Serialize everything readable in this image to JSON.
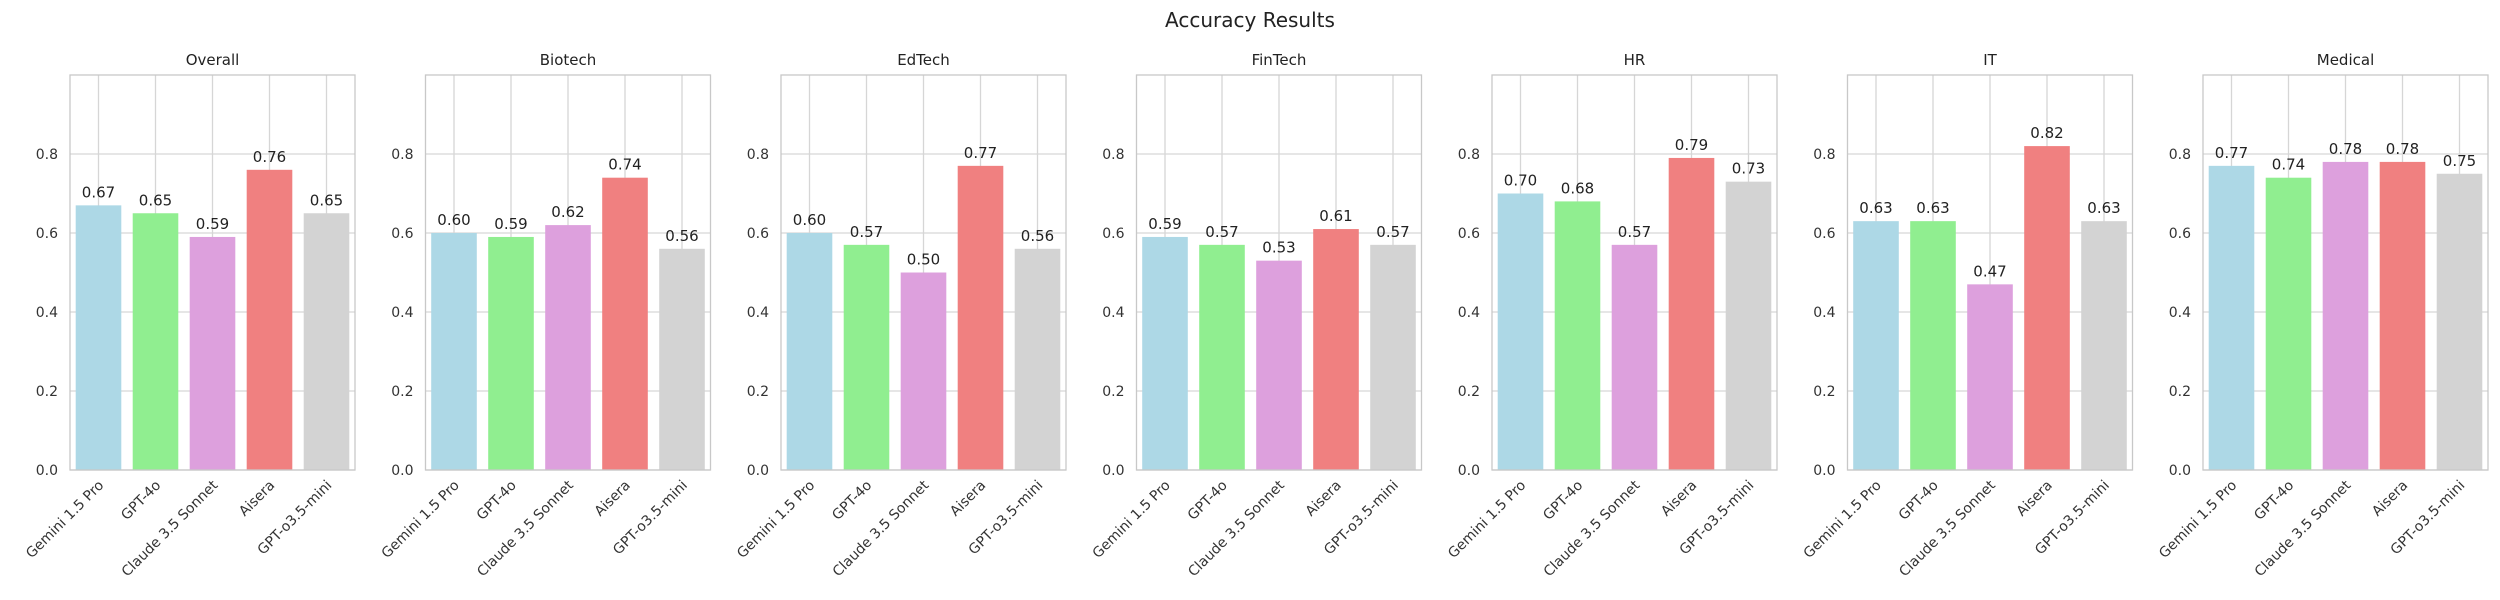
{
  "chart_data": {
    "type": "bar",
    "title": "Accuracy Results",
    "categories": [
      "Gemini 1.5 Pro",
      "GPT-4o",
      "Claude 3.5 Sonnet",
      "Aisera",
      "GPT-o3.5-mini"
    ],
    "colors": [
      "#add8e6",
      "#90ee90",
      "#dda0dd",
      "#f08080",
      "#d3d3d3"
    ],
    "ylim": [
      0,
      1.0
    ],
    "yticks": [
      0.0,
      0.2,
      0.4,
      0.6,
      0.8
    ],
    "ytick_labels": [
      "0.0",
      "0.2",
      "0.4",
      "0.6",
      "0.8"
    ],
    "grid": true,
    "panels": [
      {
        "title": "Overall",
        "values": [
          0.67,
          0.65,
          0.59,
          0.76,
          0.65
        ],
        "labels": [
          "0.67",
          "0.65",
          "0.59",
          "0.76",
          "0.65"
        ]
      },
      {
        "title": "Biotech",
        "values": [
          0.6,
          0.59,
          0.62,
          0.74,
          0.56
        ],
        "labels": [
          "0.60",
          "0.59",
          "0.62",
          "0.74",
          "0.56"
        ]
      },
      {
        "title": "EdTech",
        "values": [
          0.6,
          0.57,
          0.5,
          0.77,
          0.56
        ],
        "labels": [
          "0.60",
          "0.57",
          "0.50",
          "0.77",
          "0.56"
        ]
      },
      {
        "title": "FinTech",
        "values": [
          0.59,
          0.57,
          0.53,
          0.61,
          0.57
        ],
        "labels": [
          "0.59",
          "0.57",
          "0.53",
          "0.61",
          "0.57"
        ]
      },
      {
        "title": "HR",
        "values": [
          0.7,
          0.68,
          0.57,
          0.79,
          0.73
        ],
        "labels": [
          "0.70",
          "0.68",
          "0.57",
          "0.79",
          "0.73"
        ]
      },
      {
        "title": "IT",
        "values": [
          0.63,
          0.63,
          0.47,
          0.82,
          0.63
        ],
        "labels": [
          "0.63",
          "0.63",
          "0.47",
          "0.82",
          "0.63"
        ]
      },
      {
        "title": "Medical",
        "values": [
          0.77,
          0.74,
          0.78,
          0.78,
          0.75
        ],
        "labels": [
          "0.77",
          "0.74",
          "0.78",
          "0.78",
          "0.75"
        ]
      }
    ]
  }
}
